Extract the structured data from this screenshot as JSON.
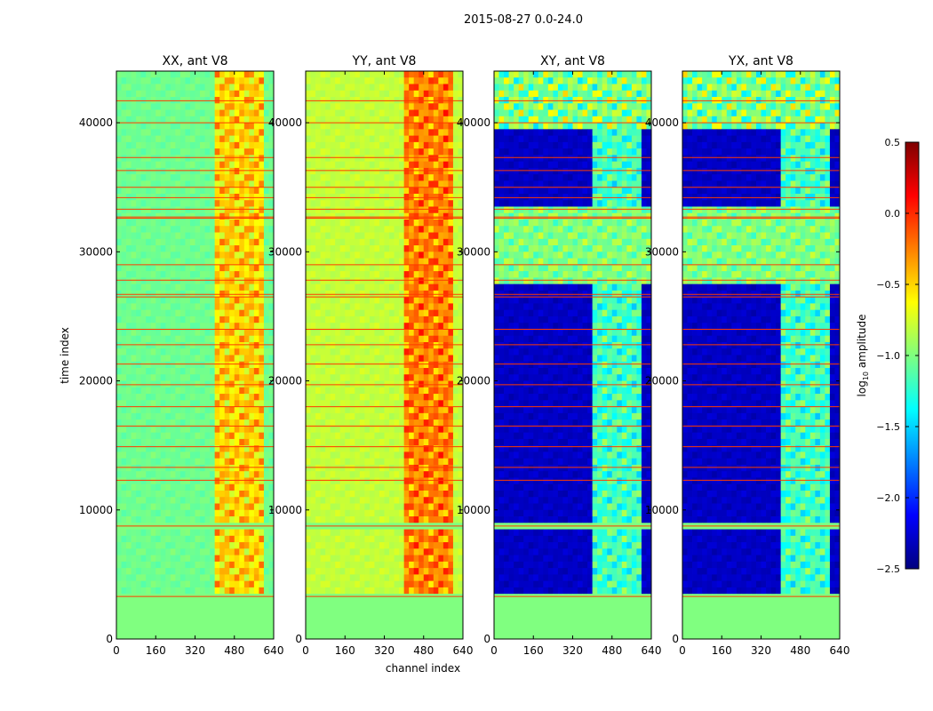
{
  "figure": {
    "suptitle": "2015-08-27 0.0-24.0",
    "ylabel": "time index",
    "xlabel": "channel index"
  },
  "chart_data": {
    "type": "heatmap",
    "x_range": [
      0,
      640
    ],
    "y_range": [
      0,
      44000
    ],
    "x_ticks": [
      0,
      160,
      320,
      480,
      640
    ],
    "y_ticks": [
      0,
      10000,
      20000,
      30000,
      40000
    ],
    "x_tick_labels": [
      "0",
      "160",
      "320",
      "480",
      "640"
    ],
    "y_tick_labels": [
      "0",
      "10000",
      "20000",
      "30000",
      "40000"
    ],
    "panels": [
      {
        "title": "XX, ant V8",
        "pol": "XX",
        "base_value": -1.05,
        "cross": false
      },
      {
        "title": "YY, ant V8",
        "pol": "YY",
        "base_value": -0.8,
        "cross": false
      },
      {
        "title": "XY, ant V8",
        "pol": "XY",
        "base_value": -2.3,
        "cross": true
      },
      {
        "title": "YX, ant V8",
        "pol": "YX",
        "base_value": -2.3,
        "cross": true
      }
    ],
    "flag_value": -1.0,
    "flagged_time_ranges": [
      [
        0,
        3400
      ],
      [
        8700,
        8800
      ]
    ],
    "bright_channel_range": [
      400,
      600
    ],
    "horizontal_line_times": [
      3300,
      8750,
      12300,
      13300,
      14900,
      16500,
      18000,
      19700,
      21300,
      22800,
      24000,
      26500,
      26700,
      27800,
      29000,
      32600,
      32700,
      33300,
      34200,
      35000,
      36300,
      37300,
      40000,
      41700
    ],
    "colorbar": {
      "label": "log10 amplitude",
      "label_base": "log",
      "label_sub": "10",
      "label_rest": " amplitude",
      "vmin": -2.5,
      "vmax": 0.5,
      "ticks": [
        0.5,
        0.0,
        -0.5,
        -1.0,
        -1.5,
        -2.0,
        -2.5
      ],
      "tick_labels": [
        "0.5",
        "0.0",
        "−0.5",
        "−1.0",
        "−1.5",
        "−2.0",
        "−2.5"
      ],
      "colormap": "jet",
      "colors": [
        "#00007f",
        "#0000ff",
        "#007fff",
        "#00ffff",
        "#7fff7f",
        "#ffff00",
        "#ff7f00",
        "#ff0000",
        "#7f0000"
      ]
    },
    "line_color": "#ff3a00"
  }
}
